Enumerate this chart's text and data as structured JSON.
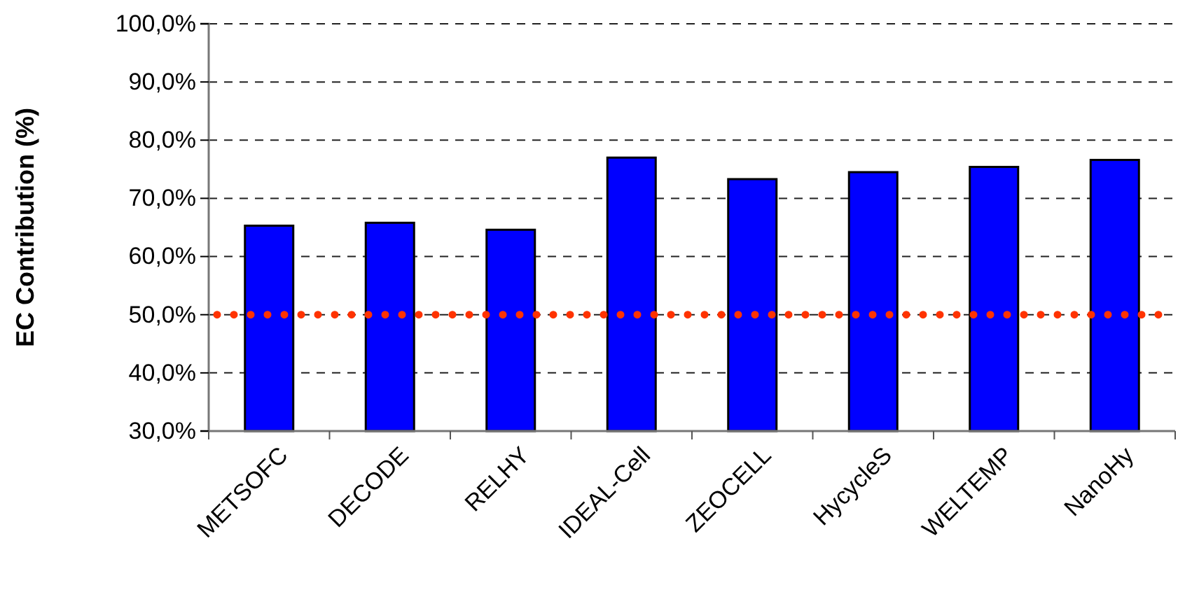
{
  "chart_data": {
    "type": "bar",
    "ylabel": "EC Contribution (%)",
    "categories": [
      "METSOFC",
      "DECODE",
      "RELHY",
      "IDEAL-Cell",
      "ZEOCELL",
      "HycycleS",
      "WELTEMP",
      "NanoHy"
    ],
    "values": [
      65.3,
      65.8,
      64.6,
      77.0,
      73.3,
      74.5,
      75.4,
      76.6
    ],
    "color": "#0000ff",
    "ylim": [
      30,
      100
    ],
    "yticks": [
      {
        "value": 30,
        "label": "30,0%"
      },
      {
        "value": 40,
        "label": "40,0%"
      },
      {
        "value": 50,
        "label": "50,0%"
      },
      {
        "value": 60,
        "label": "60,0%"
      },
      {
        "value": 70,
        "label": "70,0%"
      },
      {
        "value": 80,
        "label": "80,0%"
      },
      {
        "value": 90,
        "label": "90,0%"
      },
      {
        "value": 100,
        "label": "100,0%"
      }
    ],
    "grid": "y",
    "ref_lines": [
      {
        "axis": "y",
        "value": 50,
        "color": "#ff3300",
        "line_style": "dotted"
      }
    ]
  }
}
